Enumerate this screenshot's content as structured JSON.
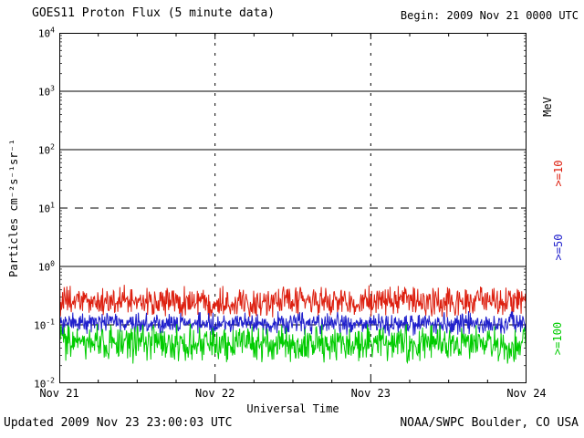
{
  "header": {
    "title": "GOES11 Proton Flux (5 minute data)",
    "begin_label": "Begin: 2009 Nov 21 0000 UTC"
  },
  "footer": {
    "updated_label": "Updated 2009 Nov 23 23:00:03 UTC",
    "source_label": "NOAA/SWPC Boulder, CO USA"
  },
  "chart_data": {
    "type": "line",
    "title": "GOES11 Proton Flux (5 minute data)",
    "xlabel": "Universal Time",
    "ylabel": "Particles cm⁻²s⁻¹sr⁻¹",
    "right_axis_unit": "MeV",
    "x_ticks": [
      "Nov 21",
      "Nov 22",
      "Nov 23",
      "Nov 24"
    ],
    "x_range_days": 3,
    "y_scale": "log10",
    "ylim": [
      0.01,
      10000
    ],
    "y_tick_exponents": [
      -2,
      -1,
      0,
      1,
      2,
      3,
      4
    ],
    "grid": {
      "hlines": [
        {
          "exp": 3,
          "style": "solid"
        },
        {
          "exp": 2,
          "style": "solid"
        },
        {
          "exp": 1,
          "style": "dashed"
        },
        {
          "exp": 0,
          "style": "solid"
        },
        {
          "exp": -1,
          "style": "dashed"
        }
      ],
      "vlines_at_day": [
        1,
        2
      ]
    },
    "series": [
      {
        "name": ">=10",
        "color": "#dd2010",
        "mean_flux": 0.25,
        "approx_range": [
          0.13,
          0.55
        ],
        "noise_decades": 0.3,
        "points_per_day": 288,
        "days": 3
      },
      {
        "name": ">=50",
        "color": "#2020cc",
        "mean_flux": 0.105,
        "approx_range": [
          0.07,
          0.2
        ],
        "noise_decades": 0.22,
        "points_per_day": 288,
        "days": 3
      },
      {
        "name": ">=100",
        "color": "#00cc00",
        "mean_flux": 0.048,
        "approx_range": [
          0.02,
          0.1
        ],
        "noise_decades": 0.36,
        "points_per_day": 288,
        "days": 3
      }
    ]
  }
}
